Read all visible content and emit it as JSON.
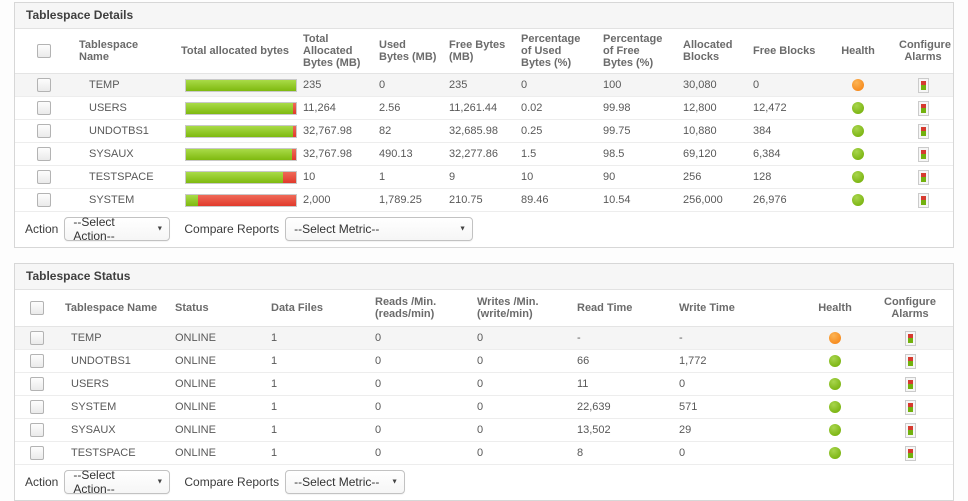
{
  "colors": {
    "bar_green": "#7eb90f",
    "bar_red": "#e13a2c",
    "health_green": "#7cb513",
    "health_orange": "#f68b1f"
  },
  "details": {
    "title": "Tablespace Details",
    "columns": [
      "Tablespace Name",
      "Total allocated bytes",
      "Total Allocated Bytes  (MB)",
      "Used Bytes (MB)",
      "Free Bytes  (MB)",
      "Percentage of Used Bytes  (%)",
      "Percentage of Free Bytes  (%)",
      "Allocated Blocks",
      "Free Blocks",
      "Health",
      "Configure Alarms"
    ],
    "rows": [
      {
        "name": "TEMP",
        "total_mb": "235",
        "used_mb": "0",
        "free_mb": "235",
        "pct_used": "0",
        "pct_free": "100",
        "allocated_blocks": "30,080",
        "free_blocks": "0",
        "health": "orange",
        "bar_green_pct": 100,
        "bar_red_pct": 0
      },
      {
        "name": "USERS",
        "total_mb": "11,264",
        "used_mb": "2.56",
        "free_mb": "11,261.44",
        "pct_used": "0.02",
        "pct_free": "99.98",
        "allocated_blocks": "12,800",
        "free_blocks": "12,472",
        "health": "green",
        "bar_green_pct": 97.5,
        "bar_red_pct": 2.5
      },
      {
        "name": "UNDOTBS1",
        "total_mb": "32,767.98",
        "used_mb": "82",
        "free_mb": "32,685.98",
        "pct_used": "0.25",
        "pct_free": "99.75",
        "allocated_blocks": "10,880",
        "free_blocks": "384",
        "health": "green",
        "bar_green_pct": 97,
        "bar_red_pct": 3
      },
      {
        "name": "SYSAUX",
        "total_mb": "32,767.98",
        "used_mb": "490.13",
        "free_mb": "32,277.86",
        "pct_used": "1.5",
        "pct_free": "98.5",
        "allocated_blocks": "69,120",
        "free_blocks": "6,384",
        "health": "green",
        "bar_green_pct": 96.5,
        "bar_red_pct": 3.5
      },
      {
        "name": "TESTSPACE",
        "total_mb": "10",
        "used_mb": "1",
        "free_mb": "9",
        "pct_used": "10",
        "pct_free": "90",
        "allocated_blocks": "256",
        "free_blocks": "128",
        "health": "green",
        "bar_green_pct": 88,
        "bar_red_pct": 12
      },
      {
        "name": "SYSTEM",
        "total_mb": "2,000",
        "used_mb": "1,789.25",
        "free_mb": "210.75",
        "pct_used": "89.46",
        "pct_free": "10.54",
        "allocated_blocks": "256,000",
        "free_blocks": "26,976",
        "health": "green",
        "bar_green_pct": 11,
        "bar_red_pct": 89
      }
    ],
    "action_bar": {
      "action_label": "Action",
      "action_value": "--Select Action--",
      "compare_label": "Compare Reports",
      "metric_value": "--Select Metric--"
    }
  },
  "status": {
    "title": "Tablespace Status",
    "columns": [
      "Tablespace Name",
      "Status",
      "Data Files",
      "Reads /Min. (reads/min)",
      "Writes /Min. (write/min)",
      "Read Time",
      "Write Time",
      "Health",
      "Configure Alarms"
    ],
    "rows": [
      {
        "name": "TEMP",
        "status": "ONLINE",
        "data_files": "1",
        "reads": "0",
        "writes": "0",
        "read_time": "-",
        "write_time": "-",
        "health": "orange"
      },
      {
        "name": "UNDOTBS1",
        "status": "ONLINE",
        "data_files": "1",
        "reads": "0",
        "writes": "0",
        "read_time": "66",
        "write_time": "1,772",
        "health": "green"
      },
      {
        "name": "USERS",
        "status": "ONLINE",
        "data_files": "1",
        "reads": "0",
        "writes": "0",
        "read_time": "11",
        "write_time": "0",
        "health": "green"
      },
      {
        "name": "SYSTEM",
        "status": "ONLINE",
        "data_files": "1",
        "reads": "0",
        "writes": "0",
        "read_time": "22,639",
        "write_time": "571",
        "health": "green"
      },
      {
        "name": "SYSAUX",
        "status": "ONLINE",
        "data_files": "1",
        "reads": "0",
        "writes": "0",
        "read_time": "13,502",
        "write_time": "29",
        "health": "green"
      },
      {
        "name": "TESTSPACE",
        "status": "ONLINE",
        "data_files": "1",
        "reads": "0",
        "writes": "0",
        "read_time": "8",
        "write_time": "0",
        "health": "green"
      }
    ],
    "action_bar": {
      "action_label": "Action",
      "action_value": "--Select Action--",
      "compare_label": "Compare Reports",
      "metric_value": "--Select Metric--"
    }
  }
}
